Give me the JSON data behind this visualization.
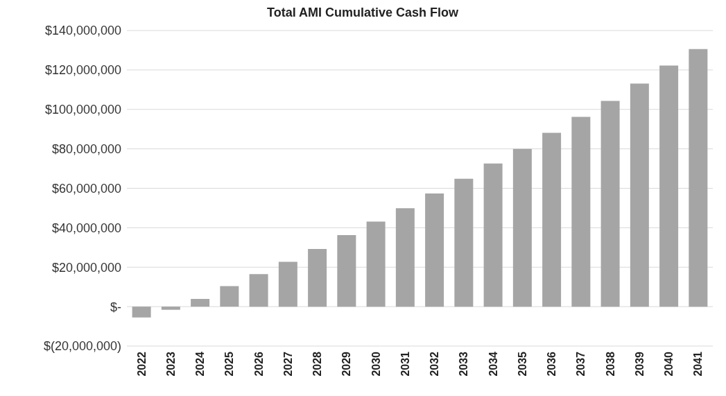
{
  "chart_data": {
    "type": "bar",
    "title": "Total AMI Cumulative Cash Flow",
    "categories": [
      "2022",
      "2023",
      "2024",
      "2025",
      "2026",
      "2027",
      "2028",
      "2029",
      "2030",
      "2031",
      "2032",
      "2033",
      "2034",
      "2035",
      "2036",
      "2037",
      "2038",
      "2039",
      "2040",
      "2041"
    ],
    "values": [
      -5500000,
      -1600000,
      3900000,
      10400000,
      16500000,
      22700000,
      29200000,
      36300000,
      43100000,
      49900000,
      57400000,
      64800000,
      72600000,
      80000000,
      88100000,
      96200000,
      104300000,
      113100000,
      122200000,
      130600000
    ],
    "color": "#a5a5a5",
    "ylim": [
      -20000000,
      140000000
    ],
    "yticks": [
      {
        "value": -20000000,
        "label": "$(20,000,000)"
      },
      {
        "value": 0,
        "label": "$-"
      },
      {
        "value": 20000000,
        "label": "$20,000,000"
      },
      {
        "value": 40000000,
        "label": "$40,000,000"
      },
      {
        "value": 60000000,
        "label": "$60,000,000"
      },
      {
        "value": 80000000,
        "label": "$80,000,000"
      },
      {
        "value": 100000000,
        "label": "$100,000,000"
      },
      {
        "value": 120000000,
        "label": "$120,000,000"
      },
      {
        "value": 140000000,
        "label": "$140,000,000"
      }
    ],
    "grid": "y"
  }
}
